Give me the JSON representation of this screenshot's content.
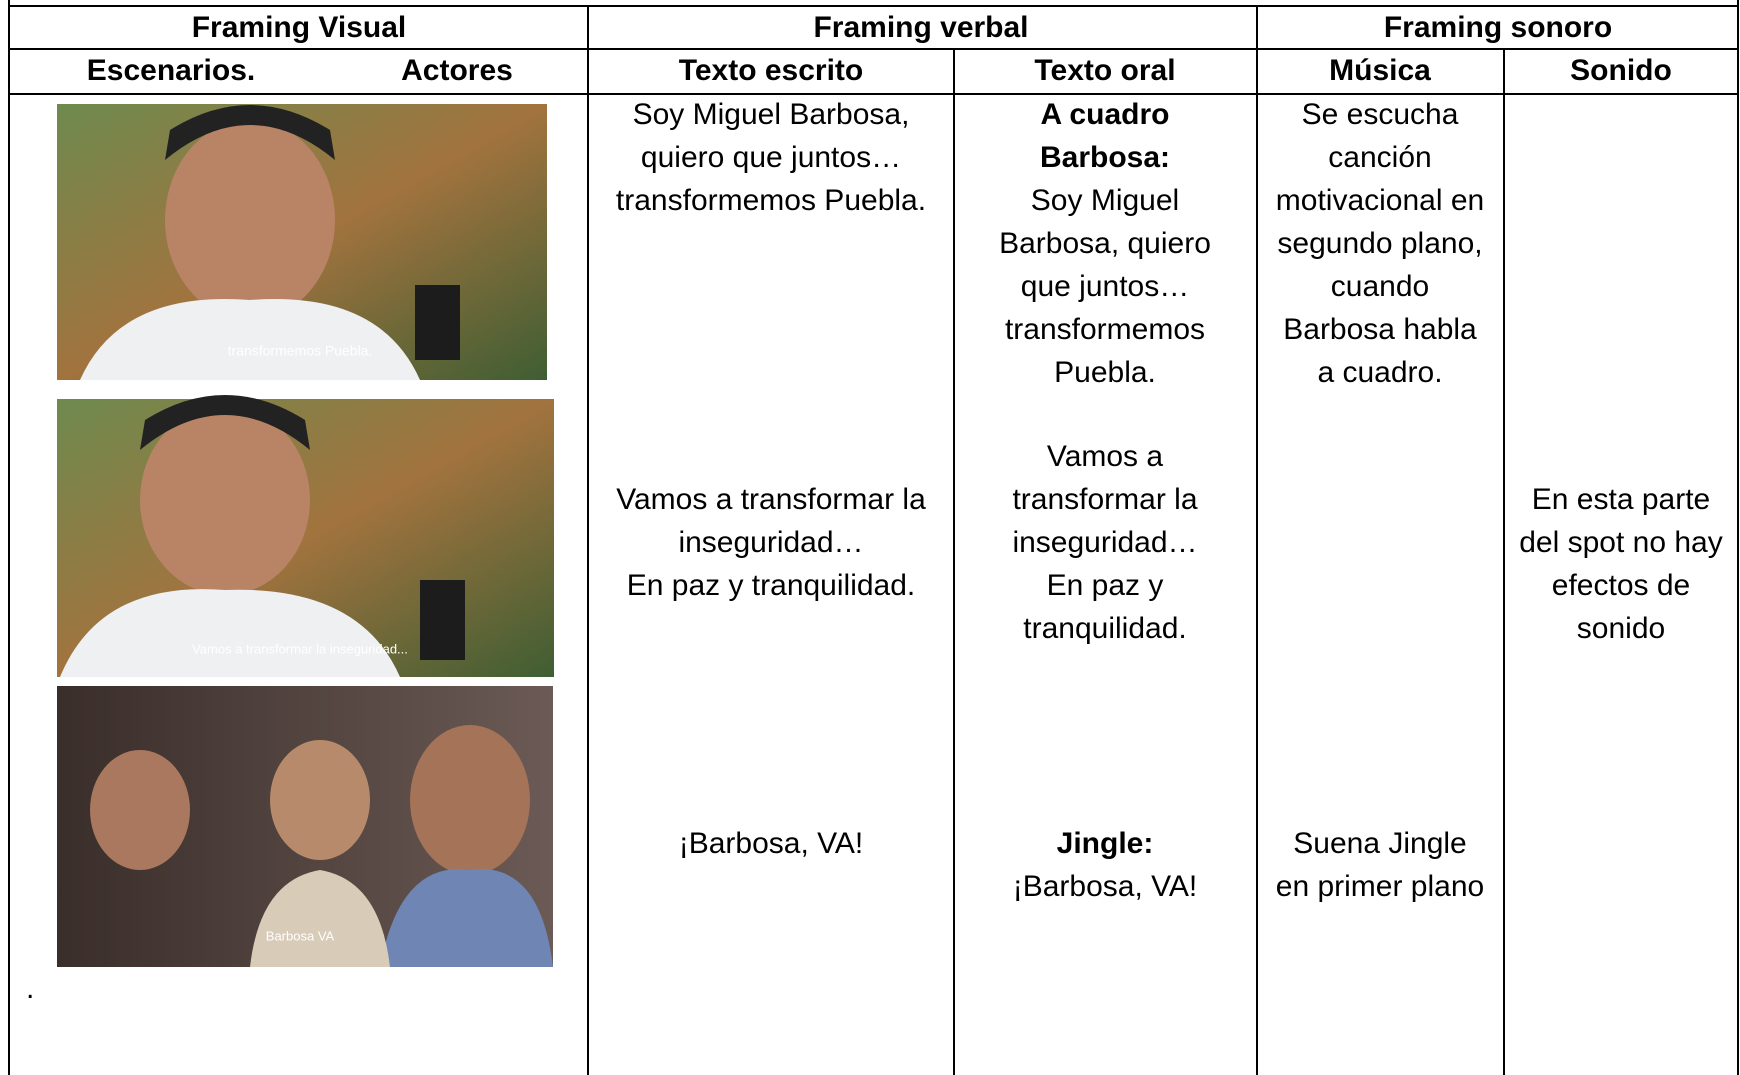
{
  "table": {
    "group_headers": [
      "Framing Visual",
      "Framing verbal",
      "Framing sonoro"
    ],
    "sub_headers": [
      "Escenarios.",
      "Actores",
      "Texto escrito",
      "Texto oral",
      "Música",
      "Sonido"
    ],
    "images": [
      {
        "caption": "transformemos Puebla."
      },
      {
        "caption": "Vamos a transformar la inseguridad..."
      },
      {
        "caption": "Barbosa VA"
      }
    ],
    "texto_escrito": [
      {
        "lines": [
          "Soy Miguel Barbosa,",
          "quiero que juntos…",
          "transformemos Puebla."
        ]
      },
      {
        "lines": [
          "Vamos a transformar la",
          "inseguridad…",
          "En paz y tranquilidad."
        ]
      },
      {
        "lines": [
          "¡Barbosa, VA!"
        ]
      }
    ],
    "texto_oral": [
      {
        "heading": [
          "A cuadro",
          "Barbosa:"
        ],
        "lines": [
          "Soy Miguel",
          "Barbosa, quiero",
          "que juntos…",
          "transformemos",
          "Puebla."
        ]
      },
      {
        "lines": [
          "Vamos a",
          "transformar la",
          "inseguridad…",
          "En paz y",
          "tranquilidad."
        ]
      },
      {
        "heading": [
          "Jingle:"
        ],
        "lines": [
          "¡Barbosa, VA!"
        ]
      }
    ],
    "musica": [
      {
        "lines": [
          "Se escucha",
          "canción",
          "motivacional en",
          "segundo plano,",
          "cuando",
          "Barbosa habla",
          "a cuadro."
        ]
      },
      {
        "lines": [
          "Suena Jingle",
          "en primer plano"
        ]
      }
    ],
    "sonido": [
      {
        "lines": [
          "En esta parte",
          "del spot no hay",
          "efectos de",
          "sonido"
        ]
      }
    ],
    "footnote": "."
  }
}
